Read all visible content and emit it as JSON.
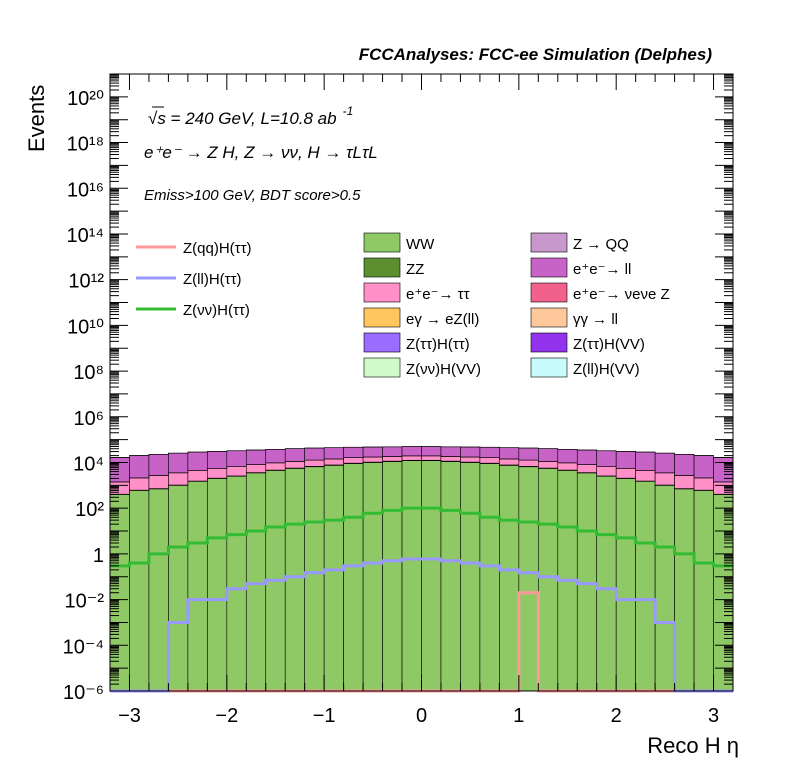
{
  "header": {
    "title": "FCCAnalyses: FCC-ee Simulation (Delphes)"
  },
  "annotations": {
    "line1": "√s = 240 GeV, L=10.8 ab",
    "line1_sup": "-1",
    "line2": "e⁺e⁻ → Z H, Z → νν, H → τLτL",
    "line3": "Emiss>100 GeV, BDT score>0.5"
  },
  "colors": {
    "WW": "#8fc965",
    "ZZ": "#5c8f2d",
    "Z_QQ": "#c898cc",
    "ee_ll": "#c763c7",
    "ee_tautau": "#ff90c8",
    "ee_nunuZ": "#f2608c",
    "egamma_eZll": "#ffc65e",
    "gammagamma_ll": "#ffc89a",
    "Ztautau_Htautau": "#9a6cff",
    "Ztautau_HVV": "#9333ee",
    "Znunu_HVV": "#d0fbc8",
    "Zll_HVV": "#c8fbfb",
    "Zqq_Htautau": "#ff9999",
    "Zll_Htautau": "#9999ff",
    "Znunu_Htautau": "#33bb33"
  },
  "chart_data": {
    "type": "bar",
    "stacked": true,
    "log_y": true,
    "xlabel": "Reco H η",
    "ylabel": "Events",
    "xlim": [
      -3.2,
      3.2
    ],
    "ylim": [
      1e-06,
      1e+21
    ],
    "bins": 32,
    "x_ticks": [
      -3,
      -2,
      -1,
      0,
      1,
      2,
      3
    ],
    "y_ticks": [
      "10⁻⁶",
      "10⁻⁴",
      "10⁻²",
      "1",
      "10²",
      "10⁴",
      "10⁶",
      "10⁸",
      "10¹⁰",
      "10¹²",
      "10¹⁴",
      "10¹⁶",
      "10¹⁸",
      "10²⁰"
    ],
    "legend_placement": "top",
    "stack_series": [
      {
        "name": "WW",
        "color_key": "WW",
        "values": [
          400,
          600,
          700,
          1000,
          1500,
          2000,
          2500,
          3500,
          4500,
          5500,
          6500,
          7500,
          9000,
          10000,
          11000,
          12000,
          12000,
          11000,
          10000,
          9000,
          7500,
          6500,
          5500,
          4500,
          3500,
          2500,
          2000,
          1500,
          1000,
          700,
          600,
          400
        ]
      },
      {
        "name": "ZZ",
        "color_key": "ZZ",
        "values": [
          10,
          15,
          20,
          30,
          40,
          60,
          80,
          100,
          150,
          200,
          250,
          300,
          350,
          400,
          450,
          500,
          500,
          450,
          400,
          350,
          300,
          250,
          200,
          150,
          100,
          80,
          60,
          40,
          30,
          20,
          15,
          10
        ]
      },
      {
        "name": "e⁺e⁻→ ττ",
        "color_key": "ee_tautau",
        "values": [
          1000,
          1500,
          2000,
          2500,
          3000,
          3500,
          4000,
          4500,
          5000,
          5500,
          6000,
          6500,
          7000,
          7000,
          7000,
          7000,
          7000,
          7000,
          7000,
          7000,
          6500,
          6000,
          5500,
          5000,
          4500,
          4000,
          3500,
          3000,
          2500,
          2000,
          1500,
          1000
        ]
      },
      {
        "name": "Z → QQ",
        "color_key": "Z_QQ",
        "values": [
          5,
          5,
          3,
          4,
          6,
          8,
          10,
          12,
          15,
          18,
          20,
          25,
          25,
          30,
          30,
          30,
          30,
          30,
          30,
          25,
          25,
          20,
          18,
          15,
          12,
          10,
          8,
          6,
          4,
          3,
          5,
          5
        ]
      },
      {
        "name": "e⁺e⁻→ ll",
        "color_key": "ee_ll",
        "values": [
          15000,
          18000,
          20000,
          22000,
          24000,
          25000,
          26000,
          27000,
          28000,
          29000,
          30000,
          30000,
          30000,
          30000,
          30000,
          30000,
          30000,
          30000,
          30000,
          30000,
          30000,
          30000,
          29000,
          28000,
          27000,
          26000,
          25000,
          24000,
          22000,
          20000,
          18000,
          15000
        ]
      },
      {
        "name": "e⁺e⁻→ νeνe Z",
        "color_key": "ee_nunuZ",
        "values": [
          5,
          5,
          6,
          7,
          8,
          9,
          10,
          10,
          11,
          11,
          12,
          12,
          12,
          12,
          12,
          12,
          12,
          12,
          12,
          12,
          12,
          12,
          11,
          11,
          10,
          10,
          9,
          8,
          7,
          6,
          5,
          5
        ]
      },
      {
        "name": "eγ → eZ(ll)",
        "color_key": "egamma_eZll",
        "values": [
          40,
          45,
          50,
          55,
          60,
          65,
          70,
          75,
          80,
          85,
          90,
          95,
          100,
          100,
          100,
          100,
          100,
          100,
          100,
          100,
          95,
          90,
          85,
          80,
          75,
          70,
          65,
          60,
          55,
          50,
          45,
          40
        ]
      },
      {
        "name": "γγ → ll",
        "color_key": "gammagamma_ll",
        "values": [
          20,
          20,
          22,
          25,
          28,
          30,
          32,
          34,
          36,
          38,
          40,
          42,
          45,
          45,
          45,
          45,
          45,
          45,
          45,
          45,
          42,
          40,
          38,
          36,
          34,
          32,
          30,
          28,
          25,
          22,
          20,
          20
        ]
      },
      {
        "name": "Z(ττ)H(ττ)",
        "color_key": "Ztautau_Htautau",
        "values": [
          0,
          0,
          0,
          0,
          0.0002,
          0.002,
          0.002,
          0.01,
          0.0002,
          0.0002,
          0.03,
          0.04,
          0.05,
          0.1,
          0.1,
          0.15,
          0.15,
          0.1,
          0.1,
          0.05,
          0.04,
          0.03,
          0.0002,
          0.0002,
          0.01,
          0.002,
          0.002,
          0.0002,
          0,
          0,
          0,
          0
        ]
      },
      {
        "name": "Z(ττ)H(VV)",
        "color_key": "Ztautau_HVV",
        "values": [
          0,
          0,
          0,
          0,
          0.0002,
          0.003,
          0.003,
          0.01,
          0.0003,
          0.0003,
          0.1,
          0.2,
          0.3,
          0.4,
          0.5,
          0.5,
          0.5,
          0.5,
          0.4,
          0.3,
          0.2,
          0.1,
          0.0003,
          0.0003,
          0.01,
          0.003,
          0.003,
          0.0002,
          0,
          0,
          0,
          0
        ]
      },
      {
        "name": "Z(νν)H(VV)",
        "color_key": "Znunu_HVV",
        "values": [
          0.05,
          0.3,
          0.5,
          1,
          1.2,
          2,
          1.5,
          3,
          3,
          4,
          5,
          6,
          6,
          6,
          6,
          6,
          6,
          6,
          6,
          6,
          6,
          5,
          4,
          3,
          3,
          1.5,
          2,
          1.2,
          1,
          0.5,
          0.3,
          0.05
        ]
      },
      {
        "name": "Z(ll)H(VV)",
        "color_key": "Zll_HVV",
        "values": [
          0,
          0,
          0.05,
          0.2,
          0.4,
          0.8,
          1,
          1.5,
          2,
          2.5,
          3,
          3.5,
          4,
          4,
          4,
          4,
          4,
          4,
          4,
          4,
          3.5,
          3,
          2.5,
          2,
          1.5,
          1,
          0.8,
          0.4,
          0.2,
          0.05,
          0,
          0
        ]
      }
    ],
    "line_series": [
      {
        "name": "Z(qq)H(ττ)",
        "color_key": "Zqq_Htautau",
        "values": [
          0,
          0,
          0,
          0,
          0,
          0,
          0,
          0,
          0,
          0,
          0,
          0,
          0,
          0,
          0,
          0,
          0,
          0,
          0,
          0,
          0,
          0.02,
          0,
          0,
          0,
          0,
          0,
          0,
          0,
          0,
          0,
          0
        ]
      },
      {
        "name": "Z(ll)H(ττ)",
        "color_key": "Zll_Htautau",
        "values": [
          0,
          0,
          0,
          0.001,
          0.01,
          0.01,
          0.03,
          0.05,
          0.07,
          0.1,
          0.15,
          0.2,
          0.3,
          0.4,
          0.5,
          0.6,
          0.6,
          0.5,
          0.4,
          0.3,
          0.2,
          0.15,
          0.1,
          0.07,
          0.05,
          0.03,
          0.01,
          0.01,
          0.001,
          0,
          0,
          0
        ]
      },
      {
        "name": "Z(νν)H(ττ)",
        "color_key": "Znunu_Htautau",
        "values": [
          0.3,
          0.4,
          1,
          2,
          3,
          5,
          7,
          10,
          15,
          20,
          25,
          30,
          40,
          60,
          80,
          100,
          100,
          80,
          60,
          40,
          30,
          25,
          20,
          15,
          10,
          7,
          5,
          3,
          2,
          1,
          0.4,
          0.3
        ]
      }
    ],
    "legend": {
      "stack_left": [
        "WW",
        "ZZ",
        "e⁺e⁻→ ττ",
        "eγ → eZ(ll)",
        "Z(ττ)H(ττ)",
        "Z(νν)H(VV)"
      ],
      "stack_right": [
        "Z → QQ",
        "e⁺e⁻→ ll",
        "e⁺e⁻→ νeνe Z",
        "γγ → ll",
        "Z(ττ)H(VV)",
        "Z(ll)H(VV)"
      ],
      "lines": [
        "Z(qq)H(ττ)",
        "Z(ll)H(ττ)",
        "Z(νν)H(ττ)"
      ]
    }
  }
}
